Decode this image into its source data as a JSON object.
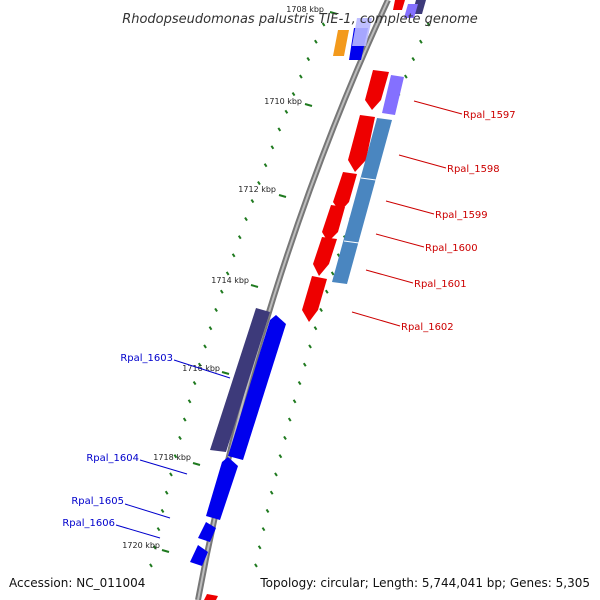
{
  "title": "Rhodopseudomonas palustris TIE-1, complete genome",
  "footer": {
    "accession": "Accession: NC_011004",
    "topology": "Topology: circular; Length: 5,744,041 bp; Genes: 5,305"
  },
  "colors": {
    "backbone": "#8a8a8a",
    "tick": "#1f7a1f",
    "forward_gene": "#0000ee",
    "reverse_gene": "#ee0000",
    "label_forward": "#0000cc",
    "label_reverse": "#cc0000",
    "navy_block": "#3d3a7a",
    "steel_block": "#4a86c0",
    "orange_block": "#f39a1c",
    "lavender_block": "#8470ff"
  },
  "kbp_labels": [
    "1708 kbp",
    "1710 kbp",
    "1712 kbp",
    "1714 kbp",
    "1716 kbp",
    "1718 kbp",
    "1720 kbp"
  ],
  "genes_reverse": [
    {
      "label": "Rpal_1597"
    },
    {
      "label": "Rpal_1598"
    },
    {
      "label": "Rpal_1599"
    },
    {
      "label": "Rpal_1600"
    },
    {
      "label": "Rpal_1601"
    },
    {
      "label": "Rpal_1602"
    }
  ],
  "genes_forward": [
    {
      "label": "Rpal_1603"
    },
    {
      "label": "Rpal_1604"
    },
    {
      "label": "Rpal_1605"
    },
    {
      "label": "Rpal_1606"
    }
  ]
}
